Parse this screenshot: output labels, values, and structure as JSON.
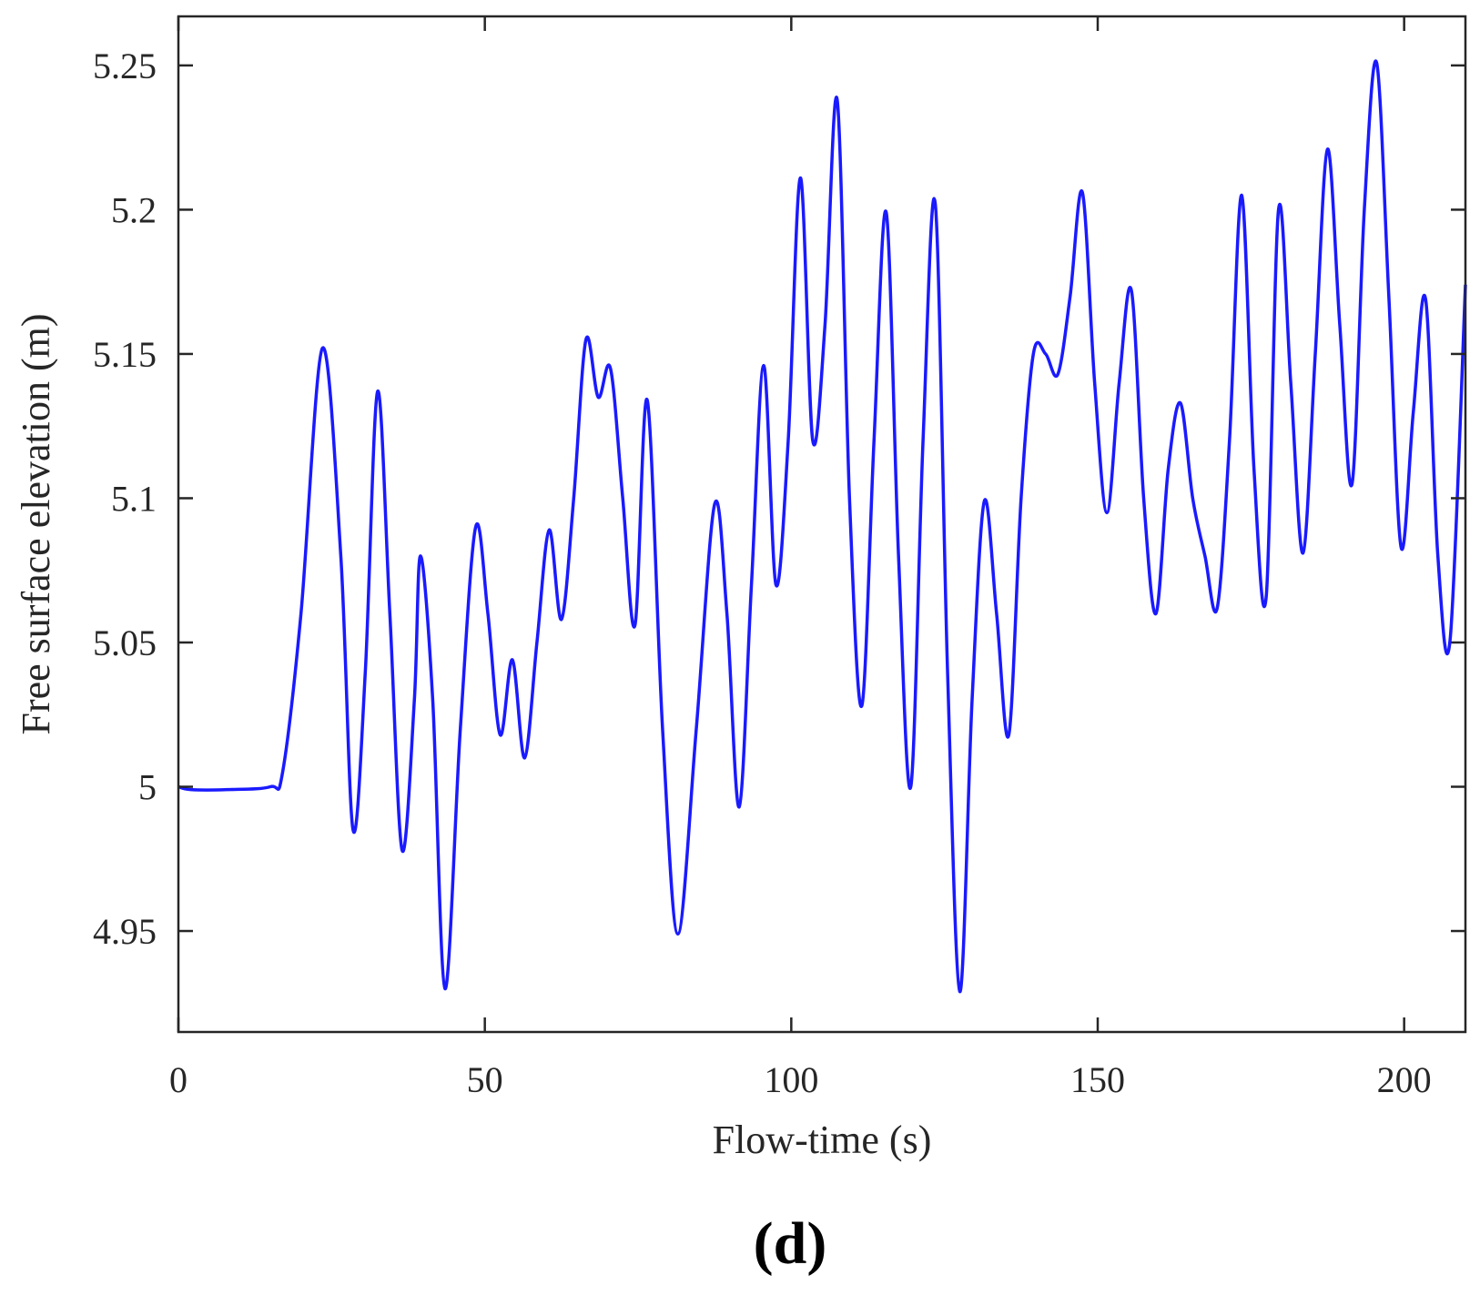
{
  "chart_data": {
    "type": "line",
    "title": "",
    "xlabel": "Flow-time (s)",
    "ylabel": "Free surface elevation (m)",
    "panel_label": "(d)",
    "xlim": [
      0,
      210
    ],
    "ylim": [
      4.915,
      5.267
    ],
    "xticks": [
      0,
      50,
      100,
      150,
      200
    ],
    "xtick_labels": [
      "0",
      "50",
      "100",
      "150",
      "200"
    ],
    "yticks": [
      4.95,
      5.0,
      5.05,
      5.1,
      5.15,
      5.2,
      5.25
    ],
    "ytick_labels": [
      "4.95",
      "5",
      "5.05",
      "5.1",
      "5.15",
      "5.2",
      "5.25"
    ],
    "grid": false,
    "legend": "none",
    "series": [
      {
        "color": "#1a1aff",
        "x": [
          0,
          2,
          8,
          15,
          17,
          20,
          23.5,
          26.5,
          28.5,
          30.5,
          32.5,
          34.5,
          36.5,
          38.5,
          39.5,
          41.5,
          43.5,
          46,
          48.5,
          50.5,
          52.5,
          54.5,
          56.5,
          58.5,
          60.5,
          62.5,
          64.5,
          66.5,
          68.5,
          70.5,
          72.5,
          74.5,
          76.5,
          79,
          81.5,
          84.5,
          87.5,
          89.5,
          91.5,
          93.5,
          95.5,
          97.5,
          99.5,
          101.5,
          103.5,
          105.5,
          107.5,
          109.5,
          111.5,
          113.5,
          115.5,
          117.5,
          119.5,
          121.5,
          123.5,
          125.5,
          127.5,
          129.5,
          131.5,
          133.5,
          135.5,
          137.5,
          139.5,
          141.5,
          143.5,
          145.5,
          147.5,
          149.5,
          151.5,
          153.5,
          155.5,
          157.5,
          159.5,
          161.5,
          163.5,
          165.5,
          167.5,
          169.5,
          171.5,
          173.5,
          175.5,
          177.5,
          179.5,
          181.5,
          183.5,
          185.5,
          187.5,
          189.5,
          191.5,
          193.5,
          195.5,
          197.5,
          199.5,
          201.5,
          203.5,
          205.5,
          207.5,
          210
        ],
        "y": [
          5.0,
          4.999,
          4.999,
          5.0,
          5.005,
          5.06,
          5.152,
          5.08,
          4.985,
          5.04,
          5.137,
          5.06,
          4.978,
          5.03,
          5.08,
          5.03,
          4.93,
          5.02,
          5.09,
          5.06,
          5.018,
          5.044,
          5.01,
          5.05,
          5.089,
          5.058,
          5.1,
          5.155,
          5.135,
          5.145,
          5.1,
          5.056,
          5.134,
          5.02,
          4.949,
          5.02,
          5.098,
          5.06,
          4.993,
          5.07,
          5.146,
          5.07,
          5.12,
          5.211,
          5.12,
          5.16,
          5.238,
          5.1,
          5.028,
          5.12,
          5.199,
          5.08,
          5.0,
          5.12,
          5.202,
          5.04,
          4.929,
          5.03,
          5.099,
          5.06,
          5.018,
          5.1,
          5.15,
          5.15,
          5.143,
          5.17,
          5.206,
          5.14,
          5.095,
          5.14,
          5.172,
          5.1,
          5.06,
          5.11,
          5.133,
          5.1,
          5.08,
          5.062,
          5.12,
          5.205,
          5.11,
          5.066,
          5.2,
          5.14,
          5.081,
          5.15,
          5.221,
          5.16,
          5.105,
          5.2,
          5.251,
          5.17,
          5.083,
          5.13,
          5.169,
          5.08,
          5.051,
          5.174
        ]
      }
    ]
  }
}
